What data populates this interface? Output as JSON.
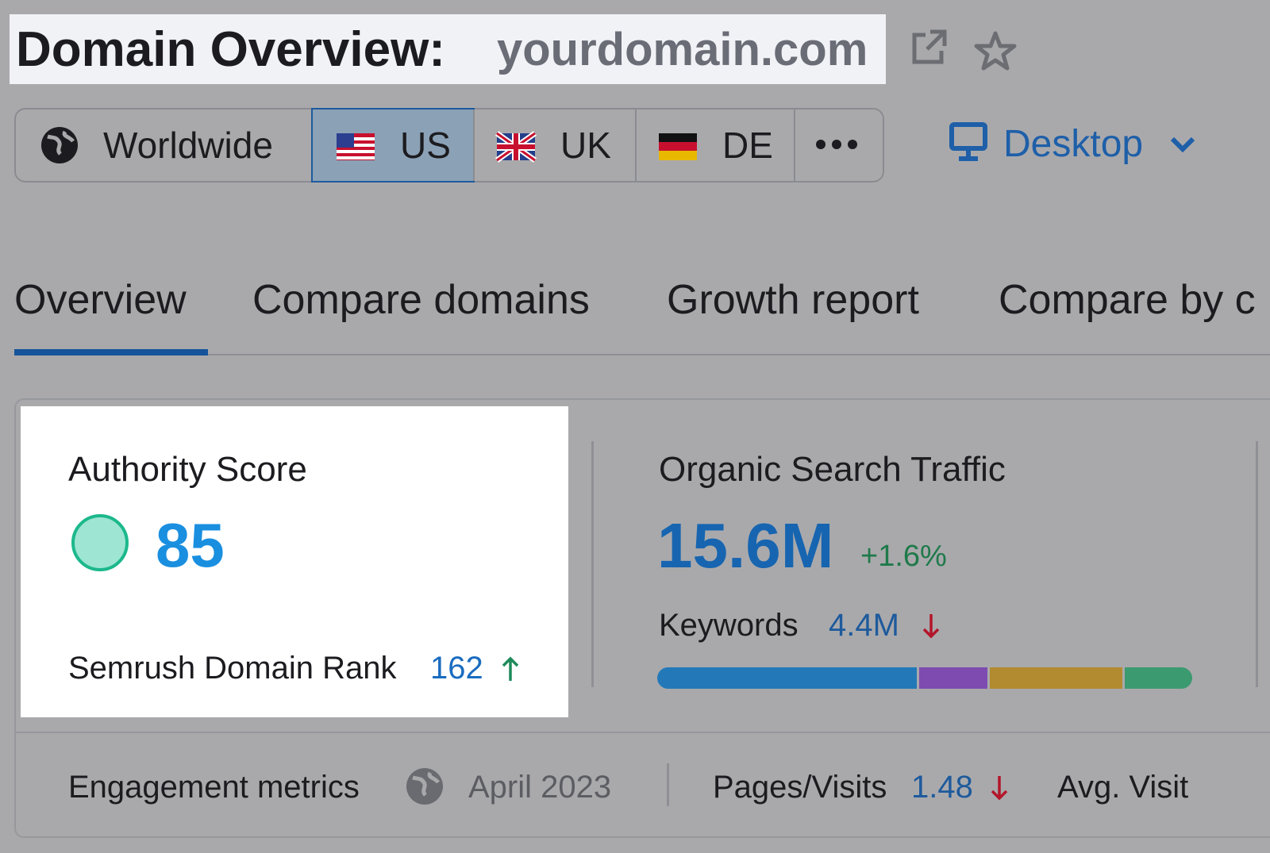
{
  "header": {
    "title": "Domain Overview:",
    "domain": "yourdomain.com"
  },
  "regions": [
    "Worldwide",
    "US",
    "UK",
    "DE"
  ],
  "device": "Desktop",
  "tabs": [
    "Overview",
    "Compare domains",
    "Growth report",
    "Compare by c"
  ],
  "authority": {
    "label": "Authority Score",
    "score": "85",
    "rank_label": "Semrush Domain Rank",
    "rank": "162"
  },
  "traffic": {
    "label": "Organic Search Traffic",
    "value": "15.6M",
    "change": "+1.6%",
    "keywords_label": "Keywords",
    "keywords": "4.4M"
  },
  "engagement": {
    "label": "Engagement metrics",
    "date": "April 2023",
    "pages_label": "Pages/Visits",
    "pages": "1.48",
    "avg_label": "Avg. Visit"
  }
}
